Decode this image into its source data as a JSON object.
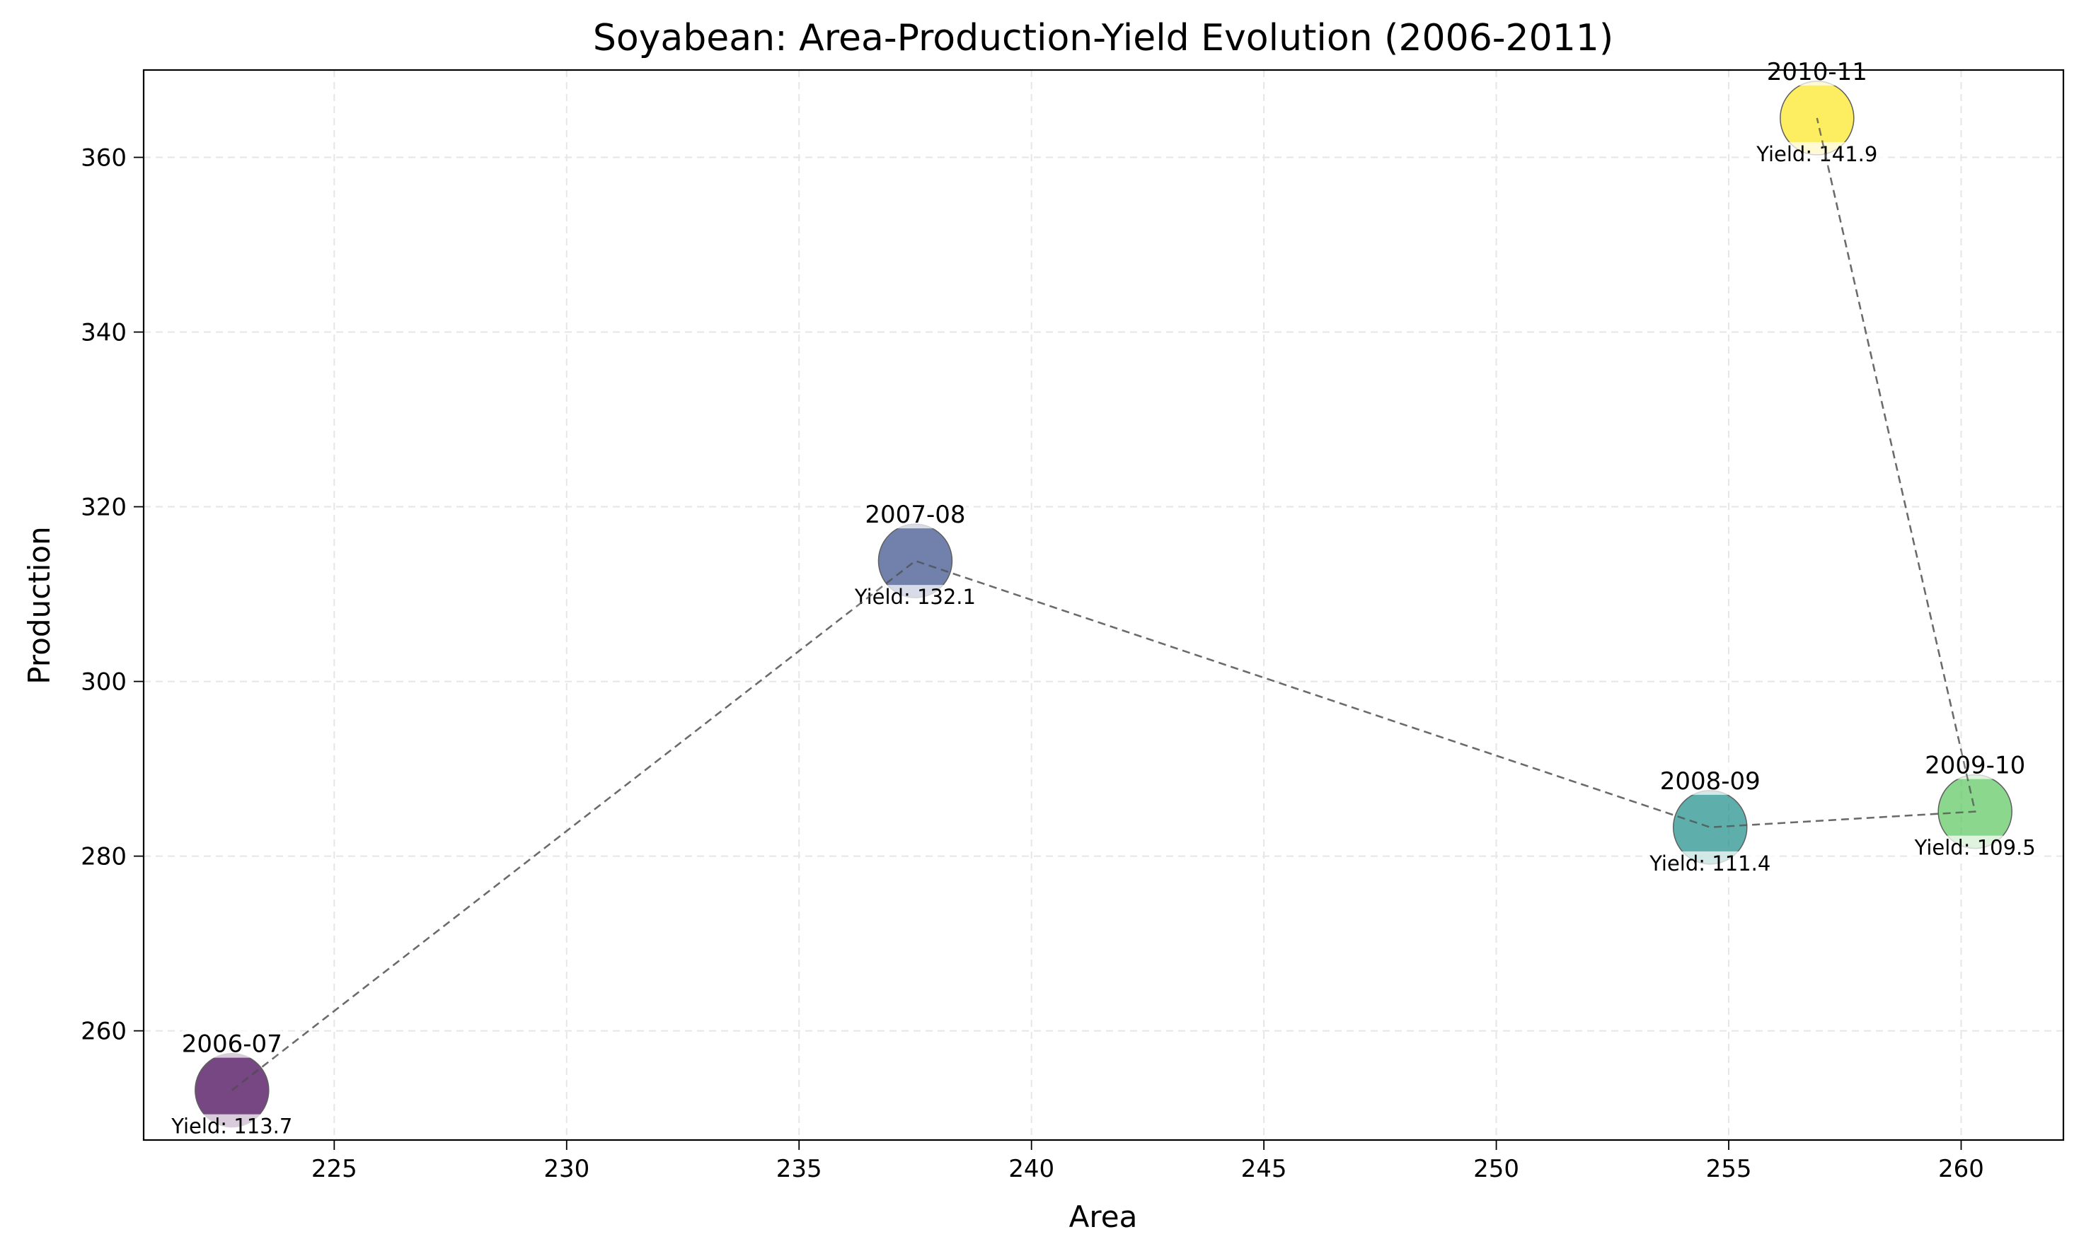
{
  "chart_data": {
    "type": "scatter",
    "title": "Soyabean: Area-Production-Yield Evolution (2006-2011)",
    "xlabel": "Area",
    "ylabel": "Production",
    "xlim": [
      220.9,
      262.2
    ],
    "ylim": [
      247.5,
      370.0
    ],
    "xticks": [
      225,
      230,
      235,
      240,
      245,
      250,
      255,
      260
    ],
    "yticks": [
      260,
      280,
      300,
      320,
      340,
      360
    ],
    "grid": true,
    "connected_path": true,
    "points": [
      {
        "label": "2006-07",
        "x": 222.8,
        "y": 253.2,
        "yield_label": "Yield: 113.7",
        "color": "#440154"
      },
      {
        "label": "2007-08",
        "x": 237.5,
        "y": 313.8,
        "yield_label": "Yield: 132.1",
        "color": "#3b528b"
      },
      {
        "label": "2008-09",
        "x": 254.6,
        "y": 283.3,
        "yield_label": "Yield: 111.4",
        "color": "#21918c"
      },
      {
        "label": "2009-10",
        "x": 260.3,
        "y": 285.1,
        "yield_label": "Yield: 109.5",
        "color": "#5ec962"
      },
      {
        "label": "2010-11",
        "x": 256.9,
        "y": 364.5,
        "yield_label": "Yield: 141.9",
        "color": "#fde725"
      }
    ]
  }
}
